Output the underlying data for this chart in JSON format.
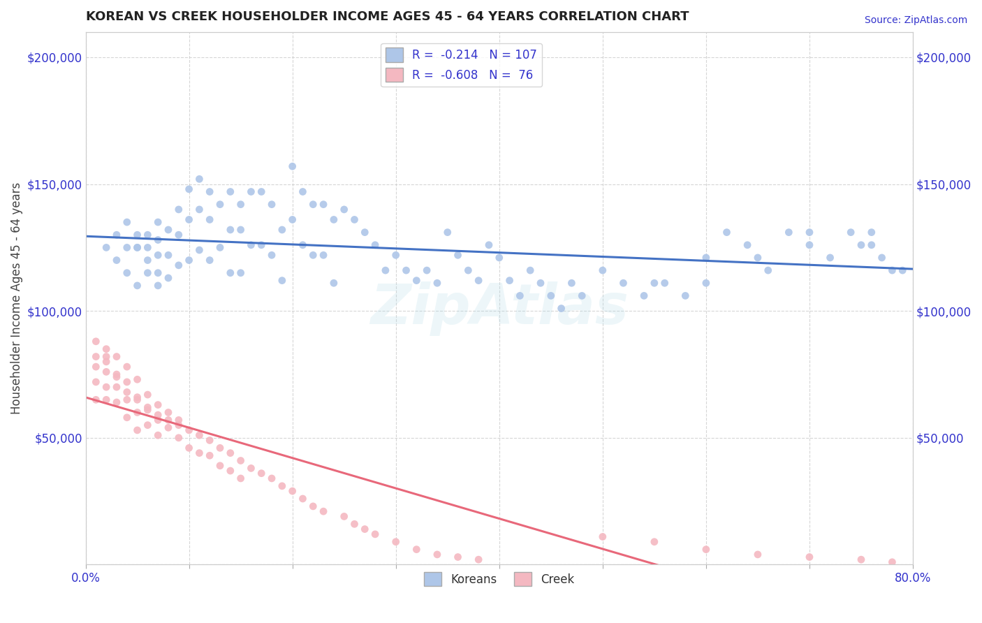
{
  "title": "KOREAN VS CREEK HOUSEHOLDER INCOME AGES 45 - 64 YEARS CORRELATION CHART",
  "source": "Source: ZipAtlas.com",
  "ylabel": "Householder Income Ages 45 - 64 years",
  "xlim": [
    0.0,
    0.8
  ],
  "ylim": [
    0,
    210000
  ],
  "watermark": "ZipAtlas",
  "korean_R": -0.214,
  "korean_N": 107,
  "creek_R": -0.608,
  "creek_N": 76,
  "korean_color": "#aec6e8",
  "creek_color": "#f4b8c1",
  "korean_line_color": "#4472c4",
  "creek_line_color": "#e8687a",
  "legend_color": "#3333cc",
  "background_color": "#ffffff",
  "korean_x": [
    0.02,
    0.03,
    0.04,
    0.04,
    0.05,
    0.05,
    0.05,
    0.06,
    0.06,
    0.06,
    0.07,
    0.07,
    0.07,
    0.07,
    0.08,
    0.08,
    0.08,
    0.09,
    0.09,
    0.09,
    0.1,
    0.1,
    0.1,
    0.11,
    0.11,
    0.11,
    0.12,
    0.12,
    0.12,
    0.13,
    0.13,
    0.14,
    0.14,
    0.14,
    0.15,
    0.15,
    0.15,
    0.16,
    0.16,
    0.17,
    0.17,
    0.18,
    0.18,
    0.19,
    0.19,
    0.2,
    0.2,
    0.21,
    0.21,
    0.22,
    0.22,
    0.23,
    0.23,
    0.24,
    0.24,
    0.25,
    0.26,
    0.27,
    0.28,
    0.29,
    0.3,
    0.31,
    0.32,
    0.33,
    0.34,
    0.35,
    0.36,
    0.37,
    0.38,
    0.39,
    0.4,
    0.41,
    0.42,
    0.43,
    0.44,
    0.45,
    0.46,
    0.47,
    0.48,
    0.5,
    0.52,
    0.54,
    0.55,
    0.56,
    0.58,
    0.6,
    0.6,
    0.62,
    0.64,
    0.65,
    0.66,
    0.68,
    0.7,
    0.7,
    0.72,
    0.74,
    0.75,
    0.76,
    0.76,
    0.77,
    0.78,
    0.79,
    0.03,
    0.04,
    0.05,
    0.06,
    0.07
  ],
  "korean_y": [
    125000,
    130000,
    135000,
    115000,
    130000,
    125000,
    110000,
    130000,
    125000,
    115000,
    135000,
    128000,
    122000,
    110000,
    132000,
    122000,
    113000,
    140000,
    130000,
    118000,
    148000,
    136000,
    120000,
    152000,
    140000,
    124000,
    147000,
    136000,
    120000,
    142000,
    125000,
    147000,
    132000,
    115000,
    142000,
    132000,
    115000,
    147000,
    126000,
    147000,
    126000,
    142000,
    122000,
    132000,
    112000,
    157000,
    136000,
    147000,
    126000,
    142000,
    122000,
    142000,
    122000,
    136000,
    111000,
    140000,
    136000,
    131000,
    126000,
    116000,
    122000,
    116000,
    112000,
    116000,
    111000,
    131000,
    122000,
    116000,
    112000,
    126000,
    121000,
    112000,
    106000,
    116000,
    111000,
    106000,
    101000,
    111000,
    106000,
    116000,
    111000,
    106000,
    111000,
    111000,
    106000,
    121000,
    111000,
    131000,
    126000,
    121000,
    116000,
    131000,
    131000,
    126000,
    121000,
    131000,
    126000,
    131000,
    126000,
    121000,
    116000,
    116000,
    120000,
    125000,
    125000,
    120000,
    115000
  ],
  "creek_x": [
    0.01,
    0.01,
    0.01,
    0.01,
    0.01,
    0.02,
    0.02,
    0.02,
    0.02,
    0.02,
    0.03,
    0.03,
    0.03,
    0.03,
    0.04,
    0.04,
    0.04,
    0.04,
    0.05,
    0.05,
    0.05,
    0.05,
    0.06,
    0.06,
    0.06,
    0.07,
    0.07,
    0.07,
    0.08,
    0.08,
    0.09,
    0.09,
    0.1,
    0.1,
    0.11,
    0.11,
    0.12,
    0.12,
    0.13,
    0.13,
    0.14,
    0.14,
    0.15,
    0.15,
    0.16,
    0.17,
    0.18,
    0.19,
    0.2,
    0.21,
    0.22,
    0.23,
    0.25,
    0.26,
    0.27,
    0.28,
    0.3,
    0.32,
    0.34,
    0.36,
    0.38,
    0.5,
    0.55,
    0.6,
    0.65,
    0.7,
    0.75,
    0.78,
    0.02,
    0.03,
    0.04,
    0.05,
    0.06,
    0.07,
    0.08,
    0.09
  ],
  "creek_y": [
    88000,
    82000,
    78000,
    72000,
    65000,
    85000,
    80000,
    76000,
    70000,
    65000,
    82000,
    75000,
    70000,
    64000,
    78000,
    72000,
    65000,
    58000,
    73000,
    66000,
    60000,
    53000,
    67000,
    61000,
    55000,
    63000,
    57000,
    51000,
    60000,
    54000,
    57000,
    50000,
    53000,
    46000,
    51000,
    44000,
    49000,
    43000,
    46000,
    39000,
    44000,
    37000,
    41000,
    34000,
    38000,
    36000,
    34000,
    31000,
    29000,
    26000,
    23000,
    21000,
    19000,
    16000,
    14000,
    12000,
    9000,
    6000,
    4000,
    3000,
    2000,
    11000,
    9000,
    6000,
    4000,
    3000,
    2000,
    1000,
    82000,
    74000,
    68000,
    65000,
    62000,
    59000,
    57000,
    55000
  ]
}
